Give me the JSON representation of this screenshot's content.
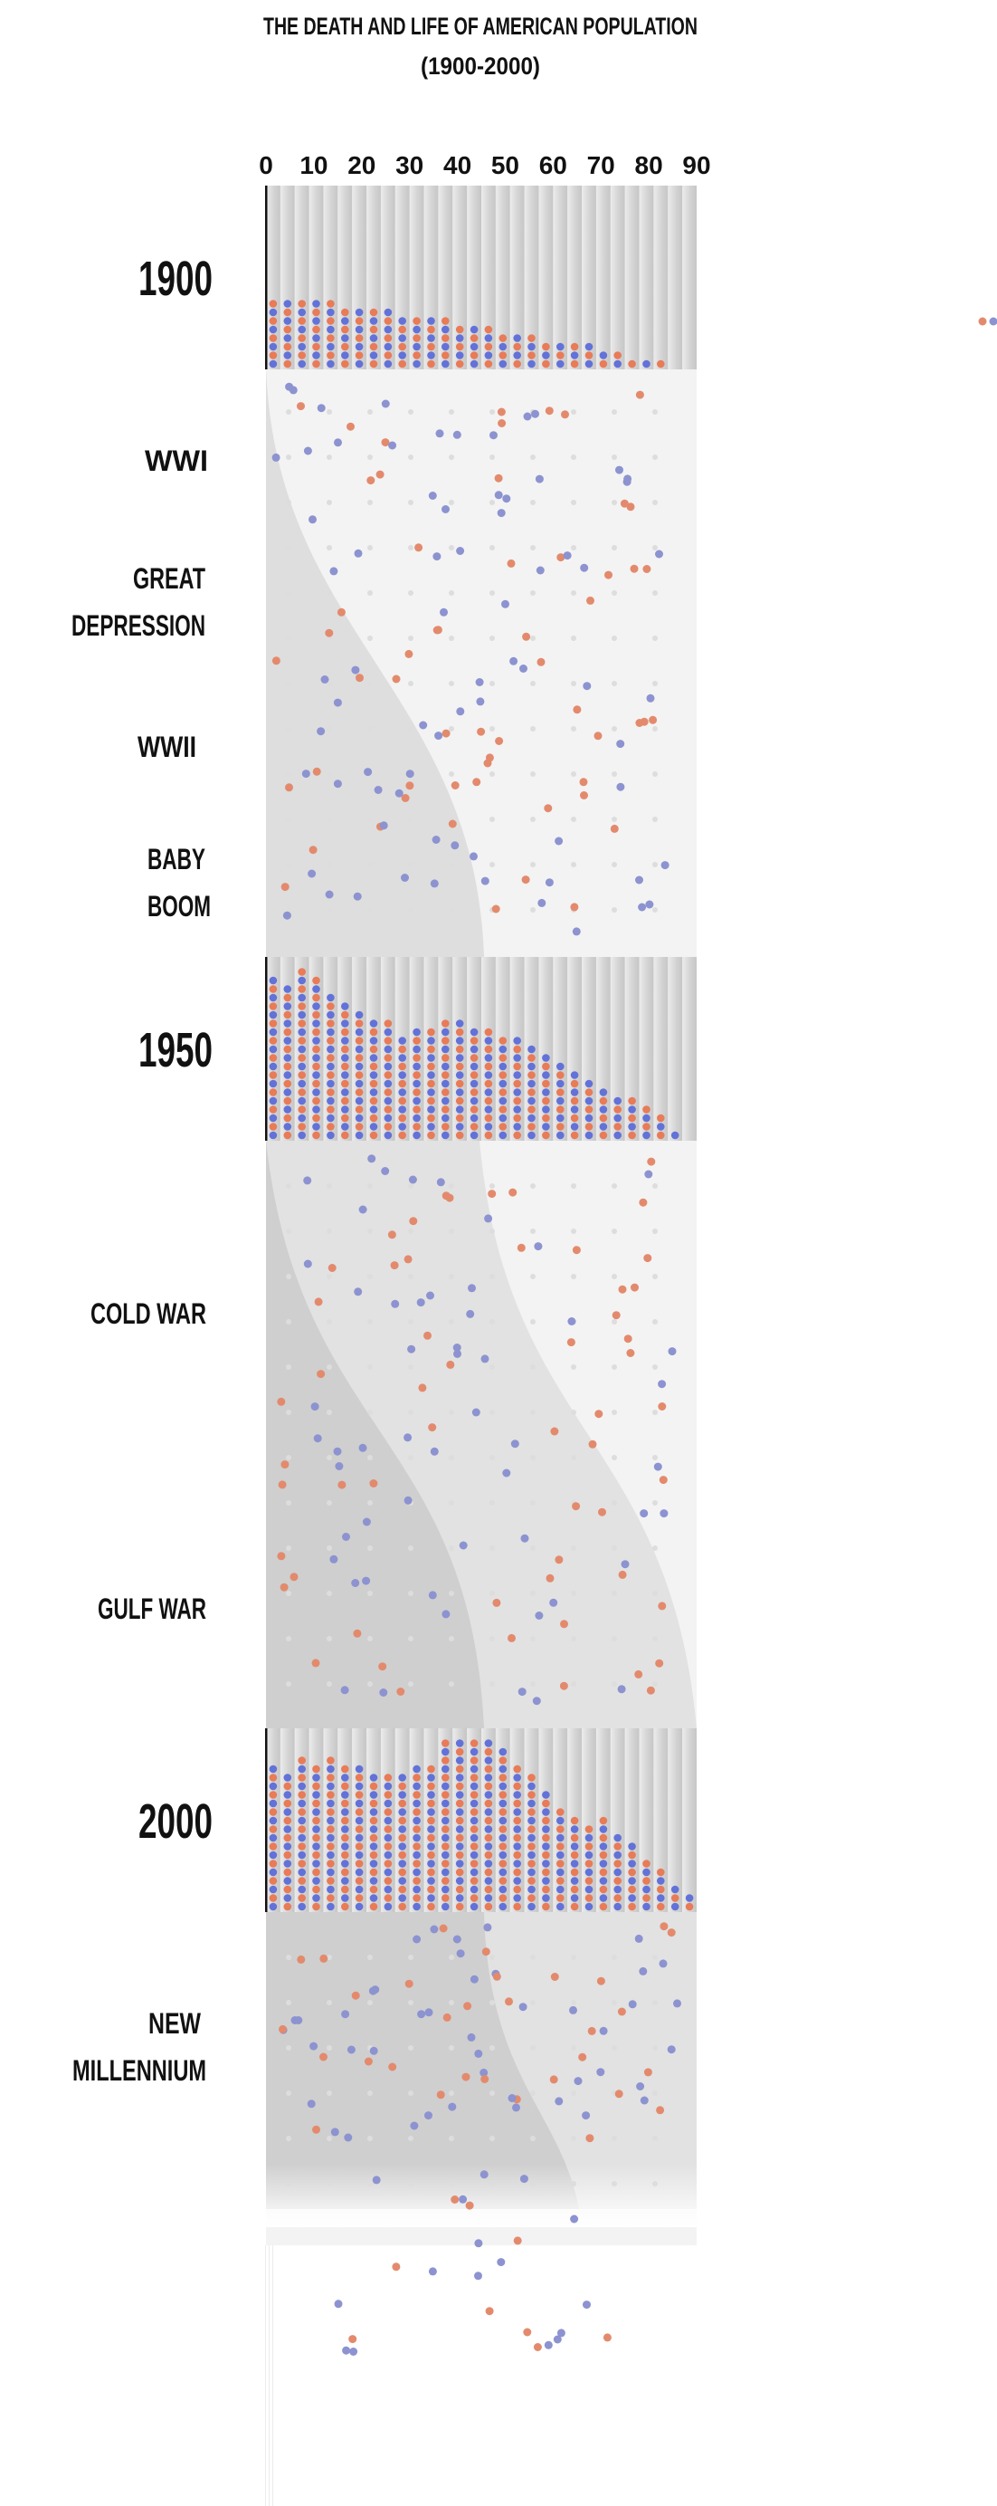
{
  "title_line1": "THE DEATH AND LIFE OF AMERICAN POPULATION",
  "title_line2": "(1900-2000)",
  "x_ticks": [
    "0",
    "10",
    "20",
    "30",
    "40",
    "50",
    "60",
    "70",
    "80",
    "90"
  ],
  "colors": {
    "male": "#6272d8",
    "female": "#e87b58",
    "male_faded": "#8c93d0",
    "female_faded": "#e38a6d",
    "faint_dot": "#dddddd",
    "panel_bg": "#dedede",
    "stripe_light": "#f3f3f3"
  },
  "era_labels": {
    "wwi": "WWI",
    "great_depression_1": "GREAT",
    "great_depression_2": "DEPRESSION",
    "wwii": "WWII",
    "baby_boom_1": "BABY",
    "baby_boom_2": "BOOM",
    "cold_war": "COLD  WAR",
    "gulf_war": "GULF WAR",
    "new_millennium_1": "NEW",
    "new_millennium_2": "MILLENNIUM"
  },
  "chart_data": {
    "type": "bar",
    "title": "THE DEATH AND LIFE OF AMERICAN POPULATION (1900-2000)",
    "xlabel": "",
    "ylabel": "",
    "xlim": [
      0,
      90
    ],
    "x_ticks": [
      0,
      10,
      20,
      30,
      40,
      50,
      60,
      70,
      80,
      90
    ],
    "age_bins": [
      0,
      3,
      6,
      9,
      12,
      15,
      18,
      21,
      24,
      27,
      30,
      33,
      36,
      39,
      42,
      45,
      48,
      51,
      54,
      57,
      60,
      63,
      66,
      69,
      72,
      75,
      78,
      81,
      84,
      87
    ],
    "series": [
      {
        "name": "1900",
        "values": [
          8,
          8,
          8,
          8,
          8,
          7,
          7,
          7,
          7,
          6,
          6,
          6,
          6,
          5,
          5,
          5,
          4,
          4,
          4,
          3,
          3,
          3,
          3,
          2,
          2,
          1,
          1,
          1,
          0,
          0
        ]
      },
      {
        "name": "1950",
        "values": [
          19,
          18,
          20,
          19,
          17,
          16,
          15,
          14,
          14,
          12,
          13,
          13,
          14,
          14,
          13,
          13,
          12,
          12,
          11,
          10,
          9,
          8,
          7,
          6,
          5,
          5,
          4,
          3,
          1,
          0
        ]
      },
      {
        "name": "2000",
        "values": [
          17,
          16,
          18,
          17,
          18,
          17,
          17,
          16,
          16,
          16,
          17,
          17,
          20,
          20,
          20,
          20,
          19,
          17,
          16,
          14,
          12,
          11,
          10,
          11,
          9,
          8,
          6,
          5,
          3,
          2
        ]
      }
    ],
    "grid": true,
    "legend": "none"
  }
}
